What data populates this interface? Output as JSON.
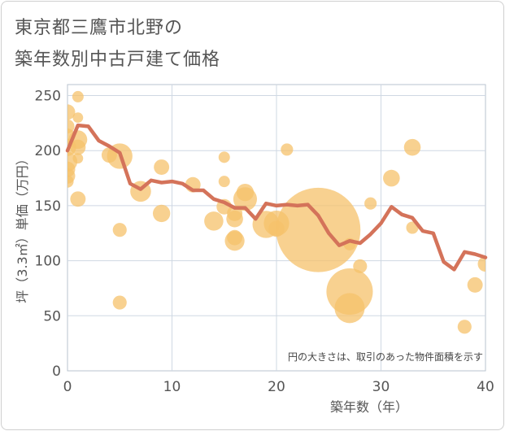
{
  "title_line1": "東京都三鷹市北野の",
  "title_line2": "築年数別中古戸建て価格",
  "chart_data": {
    "type": "scatter",
    "xlabel": "築年数（年）",
    "ylabel": "坪（3.3㎡）単価（万円）",
    "xlim": [
      0,
      40
    ],
    "ylim": [
      0,
      260
    ],
    "xticks": [
      0,
      10,
      20,
      30,
      40
    ],
    "yticks": [
      0,
      50,
      100,
      150,
      200,
      250
    ],
    "grid": true,
    "note": "円の大きさは、取引のあった物件面積を示す",
    "colors": {
      "bubble": "#f5c26b",
      "line": "#d4735a",
      "grid": "#cfd8e3"
    },
    "series": [
      {
        "kind": "bubble",
        "points": [
          {
            "x": 0,
            "y": 235,
            "s": 110
          },
          {
            "x": 0,
            "y": 222,
            "s": 90
          },
          {
            "x": 0,
            "y": 213,
            "s": 110
          },
          {
            "x": 0,
            "y": 203,
            "s": 140
          },
          {
            "x": 0,
            "y": 190,
            "s": 180
          },
          {
            "x": 0,
            "y": 183,
            "s": 110
          },
          {
            "x": 0,
            "y": 177,
            "s": 110
          },
          {
            "x": 0,
            "y": 172,
            "s": 70
          },
          {
            "x": 1,
            "y": 249,
            "s": 60
          },
          {
            "x": 1,
            "y": 230,
            "s": 50
          },
          {
            "x": 1,
            "y": 210,
            "s": 160
          },
          {
            "x": 1,
            "y": 203,
            "s": 110
          },
          {
            "x": 1,
            "y": 193,
            "s": 50
          },
          {
            "x": 1,
            "y": 156,
            "s": 110
          },
          {
            "x": 4,
            "y": 196,
            "s": 110
          },
          {
            "x": 5,
            "y": 195,
            "s": 300
          },
          {
            "x": 5,
            "y": 128,
            "s": 90
          },
          {
            "x": 5,
            "y": 62,
            "s": 90
          },
          {
            "x": 7,
            "y": 163,
            "s": 200
          },
          {
            "x": 9,
            "y": 185,
            "s": 110
          },
          {
            "x": 9,
            "y": 143,
            "s": 140
          },
          {
            "x": 12,
            "y": 169,
            "s": 110
          },
          {
            "x": 14,
            "y": 136,
            "s": 170
          },
          {
            "x": 15,
            "y": 194,
            "s": 60
          },
          {
            "x": 15,
            "y": 172,
            "s": 60
          },
          {
            "x": 15,
            "y": 149,
            "s": 110
          },
          {
            "x": 16,
            "y": 143,
            "s": 110
          },
          {
            "x": 16,
            "y": 138,
            "s": 130
          },
          {
            "x": 16,
            "y": 121,
            "s": 110
          },
          {
            "x": 16,
            "y": 118,
            "s": 180
          },
          {
            "x": 17,
            "y": 162,
            "s": 140
          },
          {
            "x": 17,
            "y": 156,
            "s": 260
          },
          {
            "x": 19,
            "y": 133,
            "s": 340
          },
          {
            "x": 20,
            "y": 134,
            "s": 300
          },
          {
            "x": 20,
            "y": 129,
            "s": 120
          },
          {
            "x": 21,
            "y": 201,
            "s": 70
          },
          {
            "x": 24,
            "y": 128,
            "s": 3300
          },
          {
            "x": 27,
            "y": 72,
            "s": 1000
          },
          {
            "x": 27,
            "y": 57,
            "s": 420
          },
          {
            "x": 27,
            "y": 115,
            "s": 70
          },
          {
            "x": 28,
            "y": 95,
            "s": 90
          },
          {
            "x": 29,
            "y": 152,
            "s": 70
          },
          {
            "x": 31,
            "y": 175,
            "s": 130
          },
          {
            "x": 33,
            "y": 203,
            "s": 130
          },
          {
            "x": 33,
            "y": 130,
            "s": 70
          },
          {
            "x": 38,
            "y": 40,
            "s": 90
          },
          {
            "x": 39,
            "y": 78,
            "s": 110
          },
          {
            "x": 40,
            "y": 97,
            "s": 110
          }
        ]
      },
      {
        "kind": "line",
        "x": [
          0,
          1,
          2,
          3,
          4,
          5,
          6,
          7,
          8,
          9,
          10,
          11,
          12,
          13,
          14,
          15,
          16,
          17,
          18,
          19,
          20,
          21,
          22,
          23,
          24,
          25,
          26,
          27,
          28,
          29,
          30,
          31,
          32,
          33,
          34,
          35,
          36,
          37,
          38,
          39,
          40
        ],
        "y": [
          200,
          223,
          222,
          209,
          204,
          198,
          170,
          165,
          173,
          171,
          172,
          170,
          164,
          164,
          156,
          153,
          148,
          148,
          138,
          152,
          150,
          151,
          150,
          151,
          141,
          125,
          114,
          118,
          116,
          124,
          134,
          149,
          142,
          139,
          127,
          125,
          99,
          92,
          108,
          106,
          103
        ]
      }
    ]
  }
}
